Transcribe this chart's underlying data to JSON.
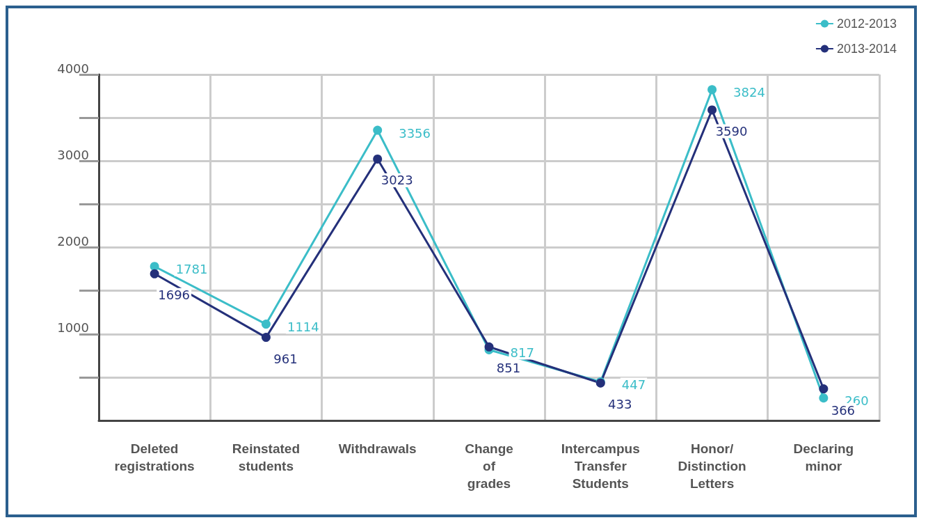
{
  "chart_data": {
    "type": "line",
    "categories": [
      "Deleted\nregistrations",
      "Reinstated\nstudents",
      "Withdrawals",
      "Change\nof\ngrades",
      "Intercampus\nTransfer\nStudents",
      "Honor/\nDistinction\nLetters",
      "Declaring\nminor"
    ],
    "series": [
      {
        "name": "2012-2013",
        "color": "#3bbdc8",
        "values": [
          1781,
          1114,
          3356,
          817,
          447,
          3824,
          260
        ]
      },
      {
        "name": "2013-2014",
        "color": "#24307a",
        "values": [
          1696,
          961,
          3023,
          851,
          433,
          3590,
          366
        ]
      }
    ],
    "ylim": [
      0,
      4000
    ],
    "yticks": [
      {
        "value": 500,
        "label": null
      },
      1000,
      {
        "value": 1500,
        "label": null
      },
      2000,
      {
        "value": 2500,
        "label": null
      },
      3000,
      {
        "value": 3500,
        "label": null
      },
      4000
    ],
    "grid": true,
    "legend": "top right",
    "marker": "circle",
    "line_style": "solid",
    "data_labels": true
  }
}
